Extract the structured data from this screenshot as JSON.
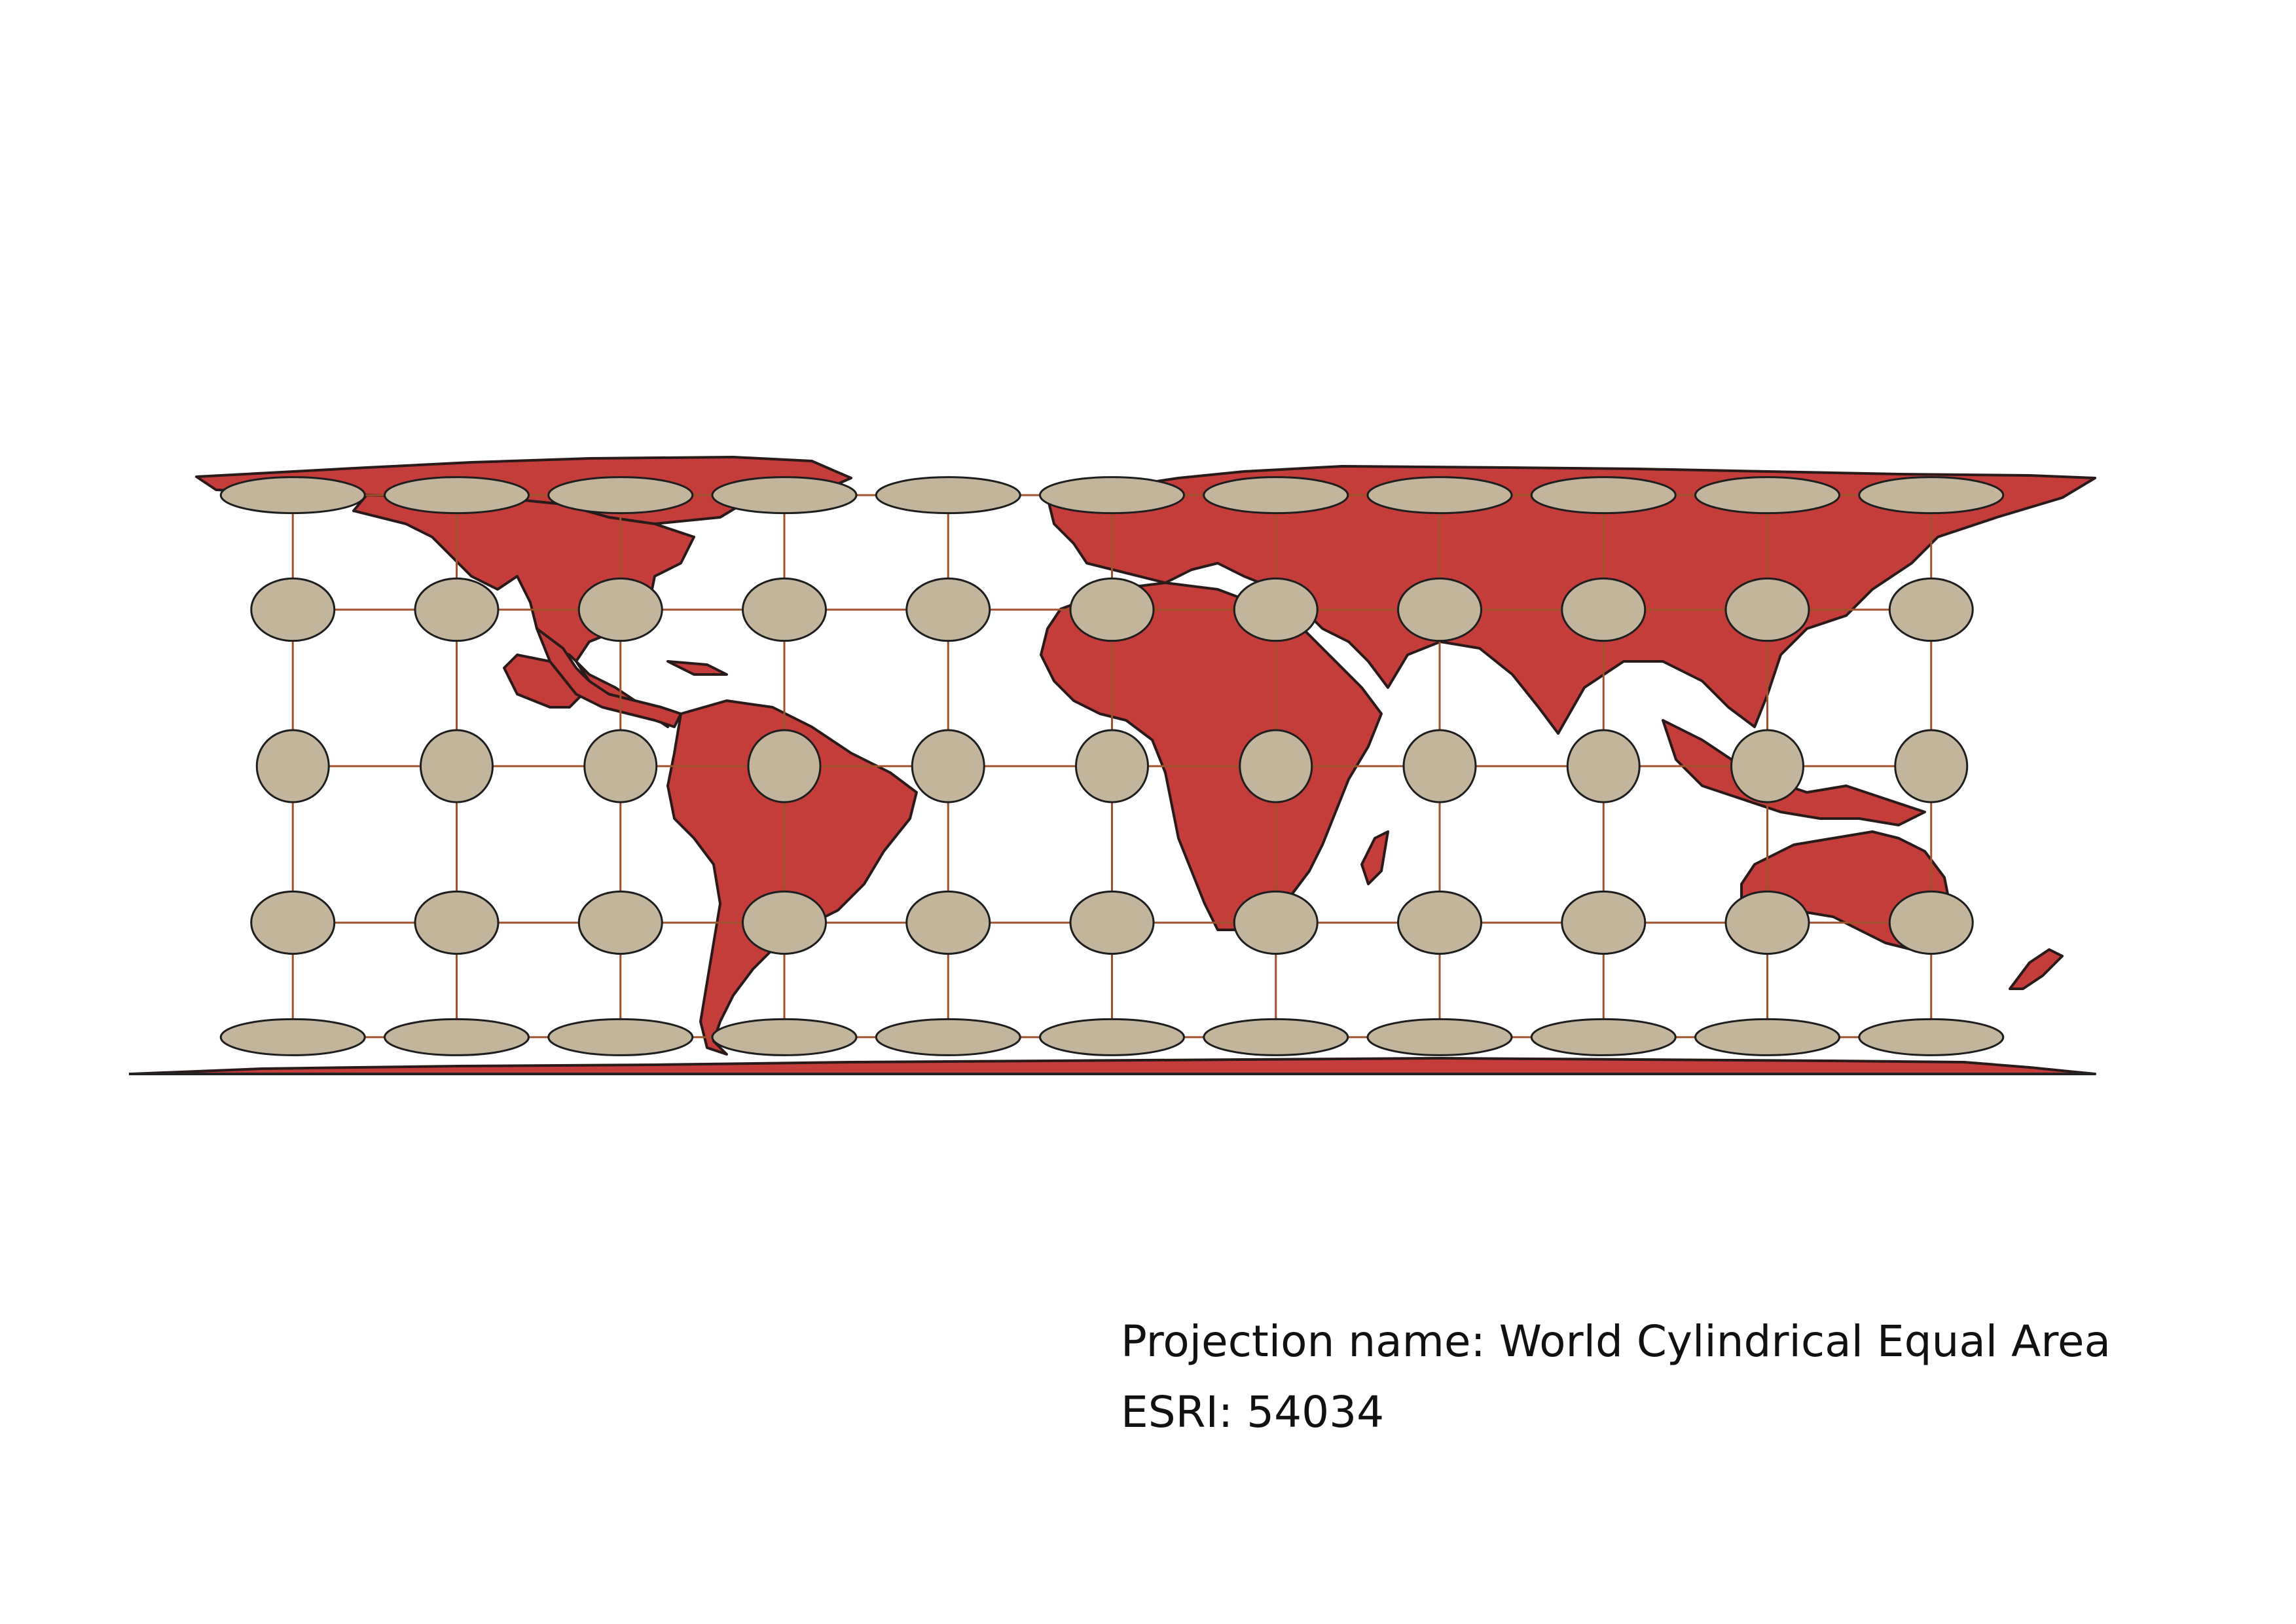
{
  "map": {
    "projection_label": "Projection name: World Cylindrical Equal Area",
    "code_label": "ESRI: 54034",
    "colors": {
      "land": "#c43d3a",
      "land_outline": "#2b1a1a",
      "ellipse_fill": "#c2b59c",
      "ellipse_outline": "#1e1e1e",
      "graticule": "#a0522d",
      "background": "#ffffff"
    },
    "graticule": {
      "longitudes_deg": [
        -150,
        -120,
        -90,
        -60,
        -30,
        0,
        30,
        60,
        90,
        120,
        150
      ],
      "latitudes_deg": [
        60,
        30,
        0,
        -30,
        -60
      ]
    },
    "indicatrix_shape": "ellipse-icon",
    "indicatrix_note": "Tissot indicatrix ellipses at each graticule intersection"
  }
}
